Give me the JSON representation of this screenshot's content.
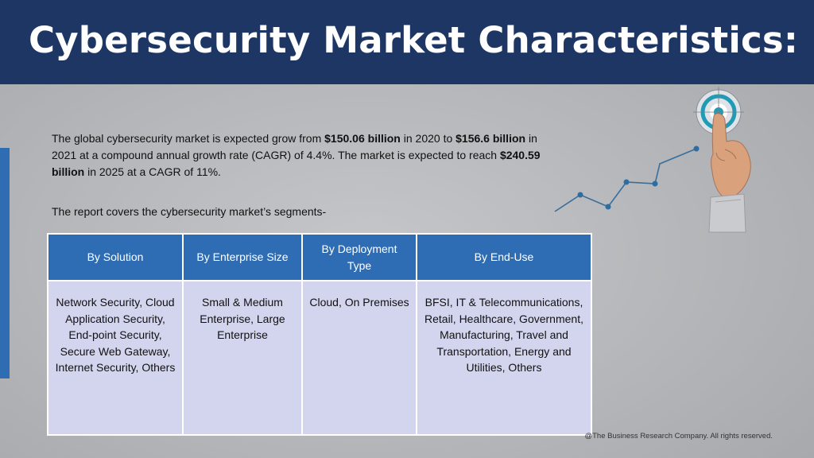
{
  "header": {
    "title": "Cybersecurity Market Characteristics:"
  },
  "intro": {
    "part1": "The global cybersecurity market is expected grow from ",
    "value_2020": "$150.06 billion",
    "part2": " in 2020 to ",
    "value_2021": "$156.6 billion",
    "part3": " in 2021 at a compound annual growth rate (CAGR) of 4.4%. The market is expected to reach ",
    "value_2025": "$240.59 billion",
    "part4": " in 2025 at a CAGR of 11%."
  },
  "segments_note": "The report covers the cybersecurity market’s segments-",
  "table": {
    "headers": [
      "By Solution",
      "By Enterprise Size",
      "By Deployment Type",
      "By End-Use"
    ],
    "cells": [
      "Network Security, Cloud Application Security, End-point Security, Secure Web Gateway, Internet Security, Others",
      "Small & Medium Enterprise, Large Enterprise",
      "Cloud, On Premises",
      "BFSI, IT & Telecommunications, Retail, Healthcare, Government, Manufacturing, Travel and Transportation, Energy and Utilities, Others"
    ]
  },
  "footer": "@The Business Research Company. All rights reserved.",
  "icons": {
    "graphic": "growth-target-hand-icon"
  },
  "colors": {
    "header": "#1e3663",
    "table_header": "#2e6db3",
    "table_cell": "#d3d5ee",
    "accent": "#2f6db3"
  }
}
